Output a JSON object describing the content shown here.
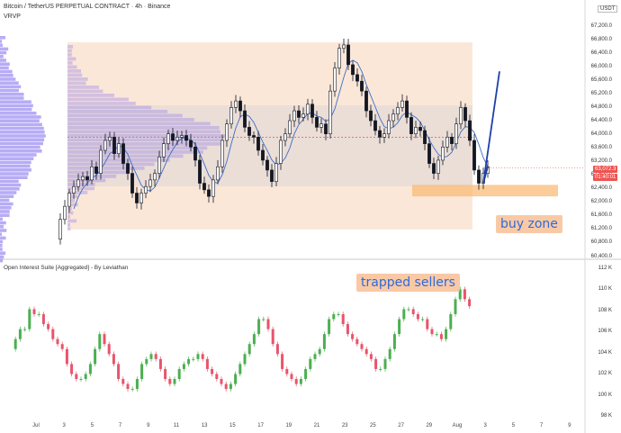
{
  "header": {
    "title": "Bitcoin / TetherUS PERPETUAL CONTRACT · 4h · Binance",
    "indicator": "VRVP",
    "currency": "USDT",
    "oi_title": "Open Interest Suite [Aggregated] - By Leviathan"
  },
  "annotations": {
    "buy_zone": "buy zone",
    "trapped_sellers": "trapped sellers"
  },
  "badges": {
    "last_price": "63,072.3",
    "countdown": "01:40:01"
  },
  "colors": {
    "up": "#26a69a",
    "down": "#ef5350",
    "candle": "#131722",
    "oi_up": "#4caf50",
    "oi_down": "#e8546b",
    "profile": "#7b68ee",
    "annotation_text": "#2d6bd8",
    "zone": "#f9b870",
    "projection": "#1f3fa8"
  },
  "chart_data": [
    {
      "type": "candlestick",
      "title": "Bitcoin / TetherUS PERPETUAL CONTRACT · 4h · Binance",
      "y_ticks": [
        "67,200.0",
        "66,800.0",
        "66,400.0",
        "66,000.0",
        "65,600.0",
        "65,200.0",
        "64,800.0",
        "64,400.0",
        "64,000.0",
        "63,600.0",
        "63,200.0",
        "62,800.0",
        "62,400.0",
        "62,000.0",
        "61,600.0",
        "61,200.0",
        "60,800.0",
        "60,400.0"
      ],
      "x_ticks": [
        "Jul",
        "3",
        "5",
        "7",
        "9",
        "11",
        "13",
        "15",
        "17",
        "19",
        "21",
        "23",
        "25",
        "27",
        "29",
        "Aug",
        "3",
        "5",
        "7",
        "9"
      ],
      "ylim": [
        60400,
        67400
      ],
      "close_path": [
        60900,
        61500,
        61900,
        62300,
        62500,
        62700,
        62800,
        62700,
        63100,
        62900,
        63600,
        63900,
        64000,
        63500,
        63800,
        63200,
        62900,
        62300,
        62000,
        62300,
        62500,
        62700,
        62900,
        63400,
        63800,
        64100,
        63900,
        64000,
        64050,
        63900,
        63700,
        63300,
        62600,
        62400,
        62200,
        62700,
        63100,
        63900,
        64400,
        64900,
        65100,
        64800,
        64300,
        64050,
        64000,
        63600,
        63300,
        63000,
        62650,
        63200,
        63900,
        64100,
        64500,
        64800,
        64600,
        64700,
        65000,
        64600,
        64300,
        64400,
        64100,
        65400,
        66100,
        66700,
        66800,
        66200,
        65900,
        65700,
        65400,
        64800,
        64500,
        64200,
        64000,
        64100,
        64500,
        64700,
        64900,
        65100,
        64600,
        64100,
        64300,
        64200,
        63800,
        63200,
        62900,
        63300,
        63700,
        64000,
        63800,
        64400,
        64900,
        64500,
        63900,
        63000,
        62600,
        62900,
        63100
      ],
      "projection": {
        "dip": 62600,
        "target": 66000
      },
      "buy_zone": {
        "low": 62200,
        "high": 62550
      },
      "poc": 64000,
      "last_price": 63072.3
    },
    {
      "type": "candlestick",
      "title": "Open Interest Suite [Aggregated] - By Leviathan",
      "y_ticks": [
        "112 K",
        "110 K",
        "108 K",
        "106 K",
        "104 K",
        "102 K",
        "100 K",
        "98 K"
      ],
      "ylim": [
        97800,
        112600
      ],
      "close_path": [
        104500,
        105500,
        106500,
        106500,
        108500,
        108000,
        108000,
        107000,
        106500,
        105500,
        105000,
        104500,
        103000,
        102000,
        101500,
        101500,
        102000,
        103000,
        104500,
        106000,
        105000,
        104000,
        103000,
        101500,
        101000,
        100500,
        100500,
        101500,
        103000,
        103500,
        104000,
        103500,
        102500,
        101500,
        101000,
        101500,
        102500,
        103000,
        103500,
        103500,
        104000,
        103500,
        102500,
        102000,
        101500,
        101000,
        100500,
        101000,
        102000,
        103000,
        104000,
        105000,
        106000,
        107500,
        107500,
        106500,
        105000,
        104000,
        102500,
        102000,
        101500,
        101000,
        101500,
        102500,
        103500,
        104000,
        104500,
        106000,
        107500,
        108000,
        108000,
        107000,
        106000,
        105500,
        105000,
        104500,
        104000,
        103500,
        102500,
        102500,
        103500,
        104500,
        106000,
        107500,
        108500,
        108500,
        108000,
        107500,
        107500,
        106500,
        106000,
        106000,
        105500,
        106500,
        108000,
        109500,
        110500,
        109500,
        108800
      ]
    }
  ]
}
